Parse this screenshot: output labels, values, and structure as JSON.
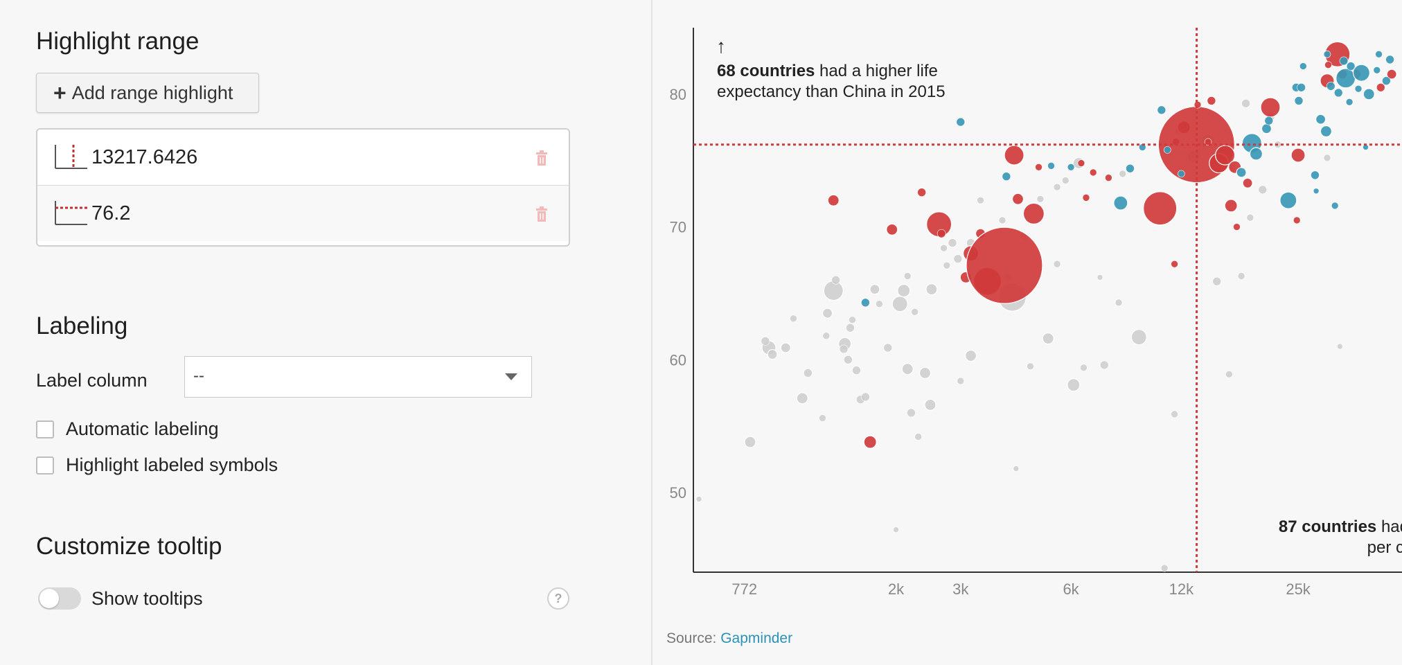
{
  "sidebar": {
    "highlight": {
      "title": "Highlight range",
      "add_button": "Add range highlight",
      "ranges": [
        {
          "value": "13217.6426",
          "type": "vertical"
        },
        {
          "value": "76.2",
          "type": "horizontal"
        }
      ]
    },
    "labeling": {
      "title": "Labeling",
      "label_column": "Label column",
      "label_column_value": "--",
      "automatic": "Automatic labeling",
      "highlight_labeled": "Highlight labeled symbols"
    },
    "tooltip": {
      "title": "Customize tooltip",
      "show_tooltips": "Show tooltips",
      "show_tooltips_on": false,
      "help": "?"
    }
  },
  "chart_data": {
    "type": "scatter",
    "x_scale": "log",
    "xlim": [
      560,
      48000
    ],
    "ylim": [
      44,
      85
    ],
    "x_ticks": [
      "772",
      "2k",
      "3k",
      "6k",
      "12k",
      "25k"
    ],
    "y_ticks": [
      "80",
      "70",
      "60",
      "50"
    ],
    "highlight_x": 13217.6426,
    "highlight_y": 76.2,
    "annotation_top": {
      "arrow": "↑",
      "bold": "68 countries",
      "rest1": " had a higher life",
      "rest2": "expectancy than China in 2015"
    },
    "annotation_bottom": {
      "bold": "87 countries",
      "rest1": " had",
      "rest2": "per c"
    },
    "colors": {
      "gray": "#cccccc",
      "red": "#d03a3a",
      "blue": "#3a98b6",
      "line": "#d03a3a"
    },
    "points": [
      [
        800,
        53.8,
        8,
        "gray"
      ],
      [
        900,
        60.9,
        10,
        "gray"
      ],
      [
        920,
        60.4,
        7,
        "gray"
      ],
      [
        880,
        61.4,
        6,
        "gray"
      ],
      [
        1000,
        60.9,
        7,
        "gray"
      ],
      [
        1050,
        63.1,
        5,
        "gray"
      ],
      [
        1150,
        59.0,
        6,
        "gray"
      ],
      [
        1110,
        57.1,
        8,
        "gray"
      ],
      [
        1260,
        55.6,
        5,
        "gray"
      ],
      [
        1290,
        61.8,
        5,
        "gray"
      ],
      [
        1300,
        63.5,
        7,
        "gray"
      ],
      [
        1350,
        65.2,
        14,
        "gray"
      ],
      [
        1370,
        66.0,
        6,
        "gray"
      ],
      [
        1450,
        61.2,
        9,
        "gray"
      ],
      [
        1440,
        60.8,
        6,
        "gray"
      ],
      [
        1500,
        62.4,
        6,
        "gray"
      ],
      [
        1480,
        60.0,
        6,
        "gray"
      ],
      [
        1520,
        63.0,
        5,
        "gray"
      ],
      [
        1560,
        59.2,
        6,
        "gray"
      ],
      [
        1600,
        57.0,
        6,
        "gray"
      ],
      [
        1650,
        57.2,
        6,
        "gray"
      ],
      [
        1750,
        65.3,
        7,
        "gray"
      ],
      [
        1800,
        64.2,
        5,
        "gray"
      ],
      [
        1900,
        60.9,
        6,
        "gray"
      ],
      [
        2050,
        64.2,
        11,
        "gray"
      ],
      [
        2100,
        65.2,
        9,
        "gray"
      ],
      [
        2150,
        59.3,
        8,
        "gray"
      ],
      [
        2200,
        56.0,
        6,
        "gray"
      ],
      [
        2150,
        66.3,
        5,
        "gray"
      ],
      [
        2250,
        63.6,
        5,
        "gray"
      ],
      [
        2400,
        59.0,
        8,
        "gray"
      ],
      [
        2480,
        56.6,
        8,
        "gray"
      ],
      [
        2500,
        65.3,
        8,
        "gray"
      ],
      [
        2700,
        68.4,
        5,
        "gray"
      ],
      [
        2750,
        67.1,
        5,
        "gray"
      ],
      [
        2850,
        68.8,
        6,
        "gray"
      ],
      [
        2950,
        67.6,
        6,
        "gray"
      ],
      [
        3200,
        68.8,
        6,
        "gray"
      ],
      [
        3400,
        72.0,
        5,
        "gray"
      ],
      [
        3900,
        70.5,
        5,
        "gray"
      ],
      [
        4050,
        66.2,
        5,
        "gray"
      ],
      [
        4150,
        64.7,
        20,
        "gray"
      ],
      [
        4450,
        69.3,
        5,
        "gray"
      ],
      [
        4250,
        51.8,
        4,
        "gray"
      ],
      [
        4650,
        59.5,
        5,
        "gray"
      ],
      [
        4950,
        72.1,
        5,
        "gray"
      ],
      [
        5200,
        61.6,
        8,
        "gray"
      ],
      [
        5500,
        67.2,
        5,
        "gray"
      ],
      [
        5500,
        73.0,
        5,
        "gray"
      ],
      [
        5800,
        73.5,
        5,
        "gray"
      ],
      [
        6300,
        74.8,
        8,
        "gray"
      ],
      [
        6100,
        58.1,
        9,
        "gray"
      ],
      [
        7200,
        66.2,
        4,
        "gray"
      ],
      [
        8300,
        74.0,
        5,
        "gray"
      ],
      [
        8100,
        64.3,
        5,
        "gray"
      ],
      [
        9200,
        61.7,
        11,
        "gray"
      ],
      [
        11800,
        77.2,
        5,
        "gray"
      ],
      [
        13000,
        75.3,
        9,
        "gray"
      ],
      [
        14200,
        76.5,
        9,
        "gray"
      ],
      [
        15000,
        65.9,
        6,
        "gray"
      ],
      [
        16500,
        74.5,
        5,
        "gray"
      ],
      [
        17500,
        66.3,
        5,
        "gray"
      ],
      [
        18000,
        79.3,
        6,
        "gray"
      ],
      [
        18500,
        70.7,
        5,
        "gray"
      ],
      [
        20000,
        72.8,
        6,
        "gray"
      ],
      [
        21000,
        78.3,
        6,
        "gray"
      ],
      [
        22000,
        76.2,
        5,
        "gray"
      ],
      [
        16200,
        58.9,
        5,
        "gray"
      ],
      [
        32500,
        61.0,
        4,
        "gray"
      ],
      [
        10800,
        44.3,
        5,
        "gray"
      ],
      [
        11500,
        55.9,
        5,
        "gray"
      ],
      [
        16000,
        75.1,
        6,
        "gray"
      ],
      [
        30000,
        75.2,
        5,
        "gray"
      ],
      [
        2000,
        47.2,
        4,
        "gray"
      ],
      [
        580,
        49.5,
        4,
        "gray"
      ],
      [
        2300,
        54.2,
        5,
        "gray"
      ],
      [
        3000,
        58.4,
        5,
        "gray"
      ],
      [
        3200,
        60.3,
        8,
        "gray"
      ],
      [
        6500,
        59.4,
        5,
        "gray"
      ],
      [
        7400,
        59.6,
        6,
        "gray"
      ],
      [
        1350,
        72.0,
        8,
        "red"
      ],
      [
        1700,
        53.8,
        9,
        "red"
      ],
      [
        1950,
        69.8,
        8,
        "red"
      ],
      [
        2350,
        72.6,
        6,
        "red"
      ],
      [
        2620,
        70.2,
        18,
        "red"
      ],
      [
        2660,
        69.5,
        6,
        "red"
      ],
      [
        3100,
        66.2,
        8,
        "red"
      ],
      [
        3200,
        68.0,
        11,
        "red"
      ],
      [
        3400,
        69.5,
        7,
        "red"
      ],
      [
        3550,
        65.9,
        20,
        "red"
      ],
      [
        3950,
        67.1,
        55,
        "red"
      ],
      [
        4300,
        72.1,
        8,
        "red"
      ],
      [
        4200,
        75.4,
        14,
        "red"
      ],
      [
        4750,
        71.0,
        15,
        "red"
      ],
      [
        4900,
        74.5,
        5,
        "red"
      ],
      [
        6400,
        74.8,
        5,
        "red"
      ],
      [
        6900,
        74.1,
        5,
        "red"
      ],
      [
        6600,
        72.2,
        5,
        "red"
      ],
      [
        10500,
        71.4,
        24,
        "red"
      ],
      [
        11500,
        67.2,
        5,
        "red"
      ],
      [
        12200,
        77.5,
        9,
        "red"
      ],
      [
        11600,
        76.4,
        5,
        "red"
      ],
      [
        13200,
        76.2,
        55,
        "red"
      ],
      [
        13300,
        79.2,
        5,
        "red"
      ],
      [
        14200,
        76.4,
        5,
        "red"
      ],
      [
        15200,
        74.8,
        14,
        "red"
      ],
      [
        15800,
        75.4,
        14,
        "red"
      ],
      [
        16800,
        74.5,
        9,
        "red"
      ],
      [
        17000,
        70.0,
        5,
        "red"
      ],
      [
        16400,
        71.6,
        9,
        "red"
      ],
      [
        21000,
        79.0,
        14,
        "red"
      ],
      [
        25000,
        75.4,
        10,
        "red"
      ],
      [
        32000,
        83.0,
        18,
        "red"
      ],
      [
        30000,
        81.0,
        10,
        "red"
      ],
      [
        33000,
        81.5,
        7,
        "red"
      ],
      [
        36000,
        81.5,
        7,
        "red"
      ],
      [
        42000,
        80.5,
        6,
        "red"
      ],
      [
        45000,
        81.5,
        7,
        "red"
      ],
      [
        7600,
        73.7,
        5,
        "red"
      ],
      [
        18200,
        73.3,
        7,
        "red"
      ],
      [
        14500,
        79.5,
        6,
        "red"
      ],
      [
        24800,
        70.5,
        5,
        "red"
      ],
      [
        30200,
        82.2,
        5,
        "red"
      ],
      [
        3000,
        77.9,
        6,
        "blue"
      ],
      [
        4000,
        73.8,
        6,
        "blue"
      ],
      [
        5300,
        74.6,
        5,
        "blue"
      ],
      [
        6000,
        74.5,
        5,
        "blue"
      ],
      [
        8200,
        71.8,
        10,
        "blue"
      ],
      [
        8700,
        74.4,
        6,
        "blue"
      ],
      [
        9400,
        76.0,
        5,
        "blue"
      ],
      [
        10600,
        78.8,
        6,
        "blue"
      ],
      [
        11000,
        75.8,
        5,
        "blue"
      ],
      [
        12000,
        74.0,
        5,
        "blue"
      ],
      [
        17500,
        74.1,
        7,
        "blue"
      ],
      [
        18700,
        76.3,
        14,
        "blue"
      ],
      [
        19200,
        75.5,
        9,
        "blue"
      ],
      [
        20500,
        77.4,
        7,
        "blue"
      ],
      [
        20800,
        78.0,
        6,
        "blue"
      ],
      [
        23500,
        72.0,
        12,
        "blue"
      ],
      [
        24700,
        80.5,
        6,
        "blue"
      ],
      [
        25100,
        79.5,
        6,
        "blue"
      ],
      [
        25500,
        80.5,
        6,
        "blue"
      ],
      [
        27800,
        73.9,
        6,
        "blue"
      ],
      [
        28800,
        78.1,
        7,
        "blue"
      ],
      [
        29800,
        77.2,
        8,
        "blue"
      ],
      [
        30700,
        80.6,
        6,
        "blue"
      ],
      [
        32200,
        80.1,
        6,
        "blue"
      ],
      [
        33300,
        82.5,
        6,
        "blue"
      ],
      [
        33700,
        81.2,
        14,
        "blue"
      ],
      [
        34800,
        82.1,
        6,
        "blue"
      ],
      [
        36500,
        80.4,
        5,
        "blue"
      ],
      [
        37200,
        81.6,
        12,
        "blue"
      ],
      [
        39000,
        80.0,
        8,
        "blue"
      ],
      [
        41000,
        81.8,
        5,
        "blue"
      ],
      [
        43500,
        81.0,
        6,
        "blue"
      ],
      [
        44500,
        82.6,
        6,
        "blue"
      ],
      [
        31500,
        71.6,
        5,
        "blue"
      ],
      [
        28000,
        72.7,
        4,
        "blue"
      ],
      [
        34500,
        79.4,
        5,
        "blue"
      ],
      [
        38200,
        76.0,
        4,
        "blue"
      ],
      [
        41500,
        83.0,
        5,
        "blue"
      ],
      [
        30000,
        83.0,
        5,
        "blue"
      ],
      [
        25800,
        82.1,
        5,
        "blue"
      ],
      [
        1650,
        64.3,
        6,
        "blue"
      ]
    ],
    "source_label": "Source:",
    "source_link": "Gapminder"
  }
}
